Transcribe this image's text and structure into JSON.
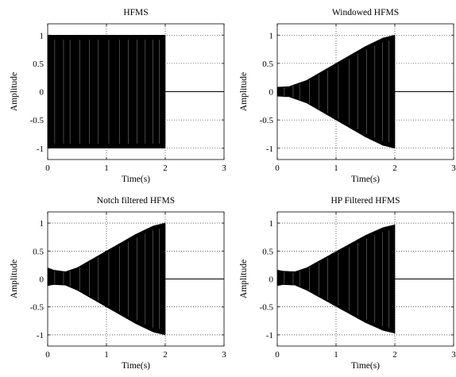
{
  "figure": {
    "background": "#ffffff",
    "signal_color": "#000000",
    "grid_color": "#000000"
  },
  "chart_data": [
    {
      "type": "line",
      "title": "HFMS",
      "xlabel": "Time(s)",
      "ylabel": "Amplitude",
      "xlim": [
        0,
        3
      ],
      "ylim": [
        -1.2,
        1.2
      ],
      "xticks": [
        "0",
        "1",
        "2",
        "3"
      ],
      "yticks": [
        "1",
        "0.5",
        "0",
        "-0.5",
        "-1"
      ],
      "xtick_values": [
        0,
        1,
        2,
        3
      ],
      "ytick_values": [
        1,
        0.5,
        0,
        -0.5,
        -1
      ],
      "grid": true,
      "series": [
        {
          "envelope_upper": {
            "t": [
              0,
              0.5,
              1,
              1.5,
              2
            ],
            "amp": [
              1,
              1,
              1,
              1,
              1
            ]
          },
          "envelope_lower": {
            "t": [
              0,
              0.5,
              1,
              1.5,
              2
            ],
            "amp": [
              -1,
              -1,
              -1,
              -1,
              -1
            ]
          },
          "signal_end": 2,
          "tail_value": 0
        }
      ]
    },
    {
      "type": "line",
      "title": "Windowed HFMS",
      "xlabel": "Time(s)",
      "ylabel": "Amplitude",
      "xlim": [
        0,
        3
      ],
      "ylim": [
        -1.2,
        1.2
      ],
      "xticks": [
        "0",
        "1",
        "2",
        "3"
      ],
      "yticks": [
        "1",
        "0.5",
        "0",
        "-0.5",
        "-1"
      ],
      "xtick_values": [
        0,
        1,
        2,
        3
      ],
      "ytick_values": [
        1,
        0.5,
        0,
        -0.5,
        -1
      ],
      "grid": true,
      "series": [
        {
          "envelope_upper": {
            "t": [
              0,
              0.2,
              0.5,
              1,
              1.5,
              1.8,
              2
            ],
            "amp": [
              0.08,
              0.09,
              0.2,
              0.5,
              0.8,
              0.95,
              1
            ]
          },
          "envelope_lower": {
            "t": [
              0,
              0.2,
              0.5,
              1,
              1.5,
              1.8,
              2
            ],
            "amp": [
              -0.08,
              -0.09,
              -0.2,
              -0.5,
              -0.8,
              -0.95,
              -1
            ]
          },
          "signal_end": 2,
          "tail_value": 0
        }
      ]
    },
    {
      "type": "line",
      "title": "Notch filtered HFMS",
      "xlabel": "Time(s)",
      "ylabel": "Amplitude",
      "xlim": [
        0,
        3
      ],
      "ylim": [
        -1.2,
        1.2
      ],
      "xticks": [
        "0",
        "1",
        "2",
        "3"
      ],
      "yticks": [
        "1",
        "0.5",
        "0",
        "-0.5",
        "-1"
      ],
      "xtick_values": [
        0,
        1,
        2,
        3
      ],
      "ytick_values": [
        1,
        0.5,
        0,
        -0.5,
        -1
      ],
      "grid": true,
      "series": [
        {
          "envelope_upper": {
            "t": [
              0,
              0.1,
              0.3,
              0.5,
              1,
              1.5,
              1.8,
              2
            ],
            "amp": [
              0.2,
              0.16,
              0.13,
              0.2,
              0.5,
              0.8,
              0.95,
              1
            ]
          },
          "envelope_lower": {
            "t": [
              0,
              0.1,
              0.3,
              0.5,
              1,
              1.5,
              1.8,
              2
            ],
            "amp": [
              -0.12,
              -0.1,
              -0.11,
              -0.2,
              -0.5,
              -0.8,
              -0.95,
              -1
            ]
          },
          "signal_end": 2,
          "tail_value": 0
        }
      ]
    },
    {
      "type": "line",
      "title": "HP Filtered HFMS",
      "xlabel": "Time(s)",
      "ylabel": "Amplitude",
      "xlim": [
        0,
        3
      ],
      "ylim": [
        -1.2,
        1.2
      ],
      "xticks": [
        "0",
        "1",
        "2",
        "3"
      ],
      "yticks": [
        "1",
        "0.5",
        "0",
        "-0.5",
        "-1"
      ],
      "xtick_values": [
        0,
        1,
        2,
        3
      ],
      "ytick_values": [
        1,
        0.5,
        0,
        -0.5,
        -1
      ],
      "grid": true,
      "series": [
        {
          "envelope_upper": {
            "t": [
              0,
              0.1,
              0.3,
              0.5,
              1,
              1.5,
              1.8,
              2
            ],
            "amp": [
              0.16,
              0.14,
              0.13,
              0.2,
              0.49,
              0.78,
              0.92,
              0.97
            ]
          },
          "envelope_lower": {
            "t": [
              0,
              0.1,
              0.3,
              0.5,
              1,
              1.5,
              1.8,
              2
            ],
            "amp": [
              -0.12,
              -0.1,
              -0.11,
              -0.2,
              -0.49,
              -0.78,
              -0.92,
              -0.97
            ]
          },
          "signal_end": 2,
          "tail_value": 0
        }
      ]
    }
  ]
}
